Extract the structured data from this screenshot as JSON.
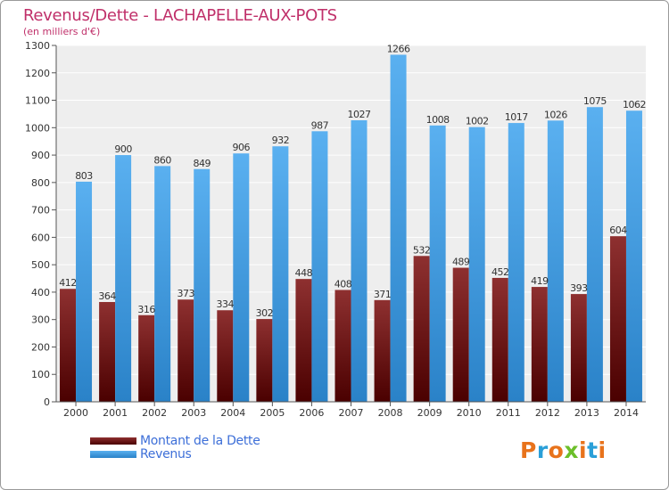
{
  "chart_data": {
    "type": "bar",
    "title": "Revenus/Dette - LACHAPELLE-AUX-POTS",
    "subtitle": "(en milliers d'€)",
    "categories": [
      "2000",
      "2001",
      "2002",
      "2003",
      "2004",
      "2005",
      "2006",
      "2007",
      "2008",
      "2009",
      "2010",
      "2011",
      "2012",
      "2013",
      "2014"
    ],
    "series": [
      {
        "name": "Montant de la Dette",
        "color": "#7a1a1a",
        "values": [
          412,
          364,
          316,
          373,
          334,
          302,
          448,
          408,
          371,
          532,
          489,
          452,
          419,
          393,
          604
        ]
      },
      {
        "name": "Revenus",
        "color": "#4aa3e8",
        "values": [
          803,
          900,
          860,
          849,
          906,
          932,
          987,
          1027,
          1266,
          1008,
          1002,
          1017,
          1026,
          1075,
          1062
        ]
      }
    ],
    "ylim": [
      0,
      1300
    ],
    "yticks": [
      0,
      100,
      200,
      300,
      400,
      500,
      600,
      700,
      800,
      900,
      1000,
      1100,
      1200,
      1300
    ],
    "grid": true,
    "legend_position": "bottom-left"
  },
  "logo": {
    "text": "Proxiti",
    "colors": [
      "#e8731c",
      "#2a9fd8",
      "#e8731c",
      "#6cbf2a",
      "#e8731c",
      "#2a9fd8",
      "#e8731c"
    ]
  }
}
